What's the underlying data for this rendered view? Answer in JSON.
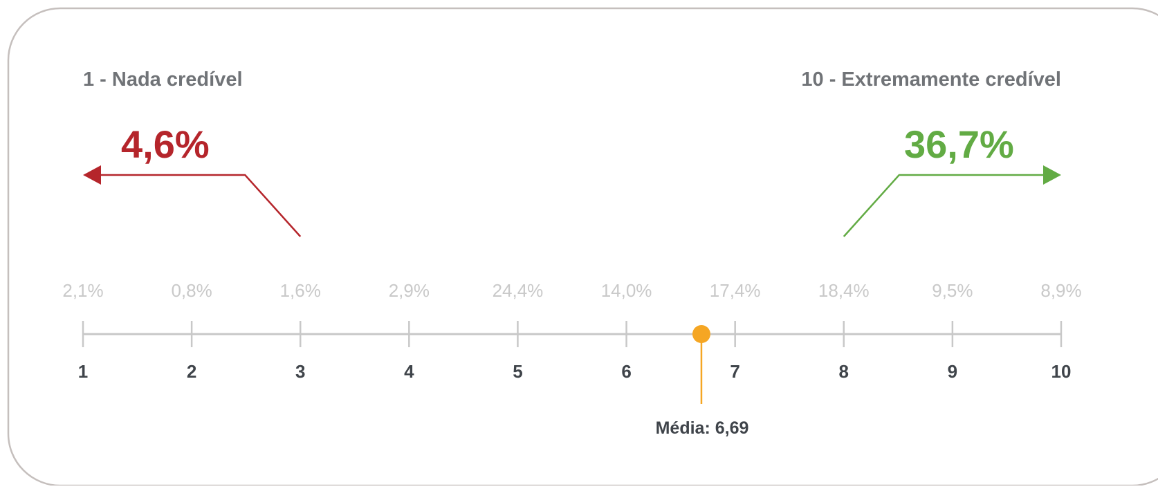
{
  "chart_data": {
    "type": "scale",
    "left_label": "1 - Nada credível",
    "right_label": "10 - Extremamente credível",
    "left_summary": "4,6%",
    "right_summary": "36,7%",
    "left_summary_range": [
      1,
      3
    ],
    "right_summary_range": [
      8,
      10
    ],
    "categories": [
      "1",
      "2",
      "3",
      "4",
      "5",
      "6",
      "7",
      "8",
      "9",
      "10"
    ],
    "value_labels": [
      "2,1%",
      "0,8%",
      "1,6%",
      "2,9%",
      "24,4%",
      "14,0%",
      "17,4%",
      "18,4%",
      "9,5%",
      "8,9%"
    ],
    "values": [
      2.1,
      0.8,
      1.6,
      2.9,
      24.4,
      14.0,
      17.4,
      18.4,
      9.5,
      8.9
    ],
    "mean": 6.69,
    "mean_label": "Média: 6,69",
    "xlim": [
      1,
      10
    ]
  },
  "colors": {
    "low": "#b5252b",
    "high": "#62ab44",
    "mean": "#f5a623",
    "axis": "#c8c8c8",
    "heading": "#707377",
    "value_text": "#c9c9c9",
    "tick_text": "#3f444a",
    "border": "#c5bfbd"
  }
}
